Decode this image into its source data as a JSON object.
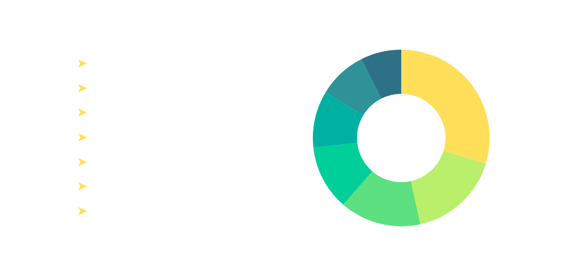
{
  "chart_data": {
    "type": "pie",
    "donut": true,
    "values": [
      30,
      17,
      15,
      12,
      10.5,
      9,
      7.5
    ],
    "colors": [
      "#FFDF5A",
      "#B9EF6A",
      "#5DE07F",
      "#00CF9A",
      "#00B1A2",
      "#2E9298",
      "#2E7085"
    ],
    "legend_icon": "arrow-icon",
    "legend_color": "#FFDF5A",
    "legend_position": "left"
  }
}
